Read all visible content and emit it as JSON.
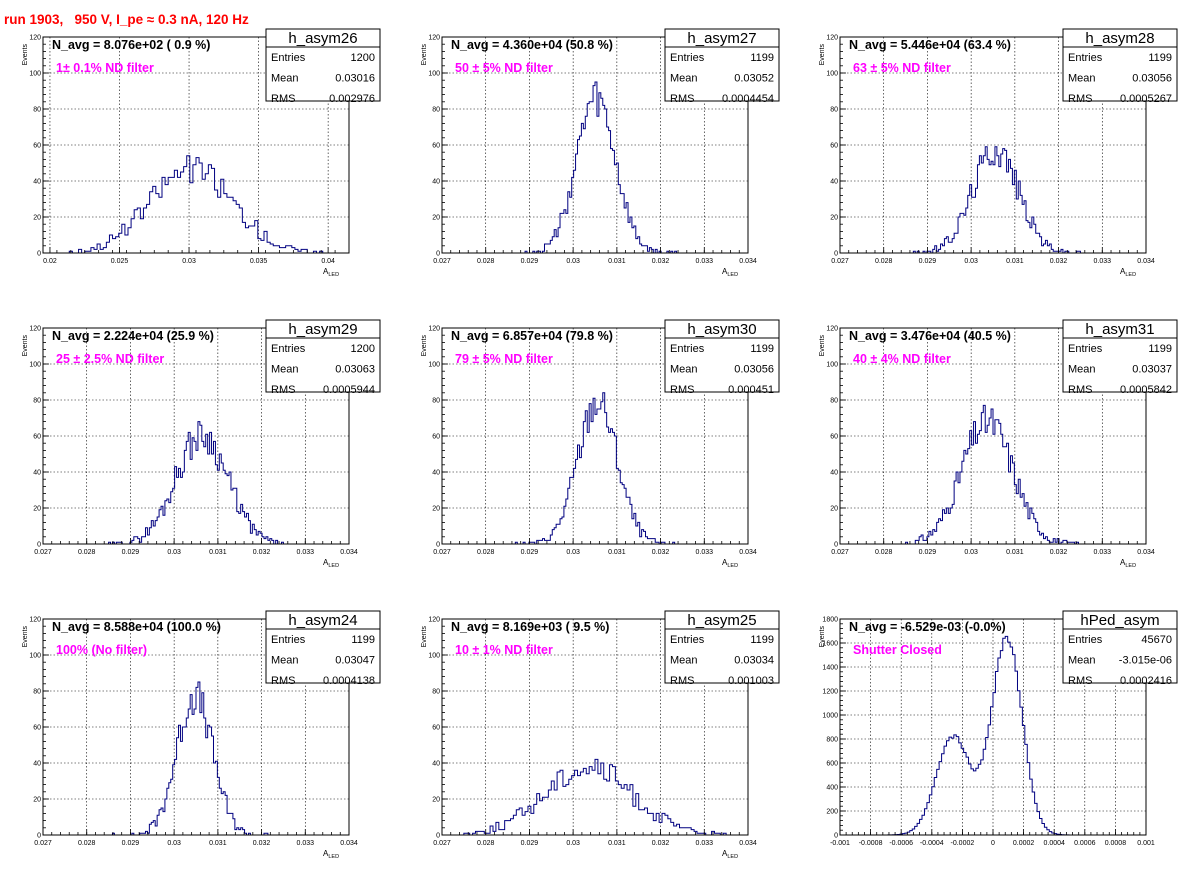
{
  "page": {
    "title": "run 1903,   950 V, I_pe ≈ 0.3 nA, 120 Hz",
    "title_color": "#ff0000",
    "line_color": "#000080",
    "annotation_color": "#ff00ff"
  },
  "chart_data": [
    {
      "type": "histogram",
      "hist_name": "h_asym26",
      "avg_text": "N_avg = 8.076e+02 ( 0.9 %)",
      "filter_text": "1± 0.1% ND filter",
      "stats": [
        {
          "label": "Entries",
          "value": "1200"
        },
        {
          "label": "Mean",
          "value": "0.03016"
        },
        {
          "label": "RMS",
          "value": "0.002976"
        }
      ],
      "xlim": [
        0.0195,
        0.0415
      ],
      "ylim": [
        0,
        120
      ],
      "x_ticks": [
        0.02,
        0.025,
        0.03,
        0.035,
        0.04
      ],
      "x_tick_labels": [
        "0.02",
        "0.025",
        "0.03",
        "0.035",
        "0.04"
      ],
      "y_ticks": [
        0,
        20,
        40,
        60,
        80,
        100,
        120
      ],
      "ylabel": "Events",
      "xlabel": "A",
      "xlabel_sub": "LED",
      "profile": "gauss",
      "mean": 0.03016,
      "sigma": 0.002976,
      "peak": 51,
      "bins": 90,
      "range": [
        0.0205,
        0.0405
      ],
      "seed": 26
    },
    {
      "type": "histogram",
      "hist_name": "h_asym27",
      "avg_text": "N_avg = 4.360e+04 (50.8 %)",
      "filter_text": "50 ± 5% ND filter",
      "stats": [
        {
          "label": "Entries",
          "value": "1199"
        },
        {
          "label": "Mean",
          "value": "0.03052"
        },
        {
          "label": "RMS",
          "value": "0.0004454"
        }
      ],
      "xlim": [
        0.027,
        0.034
      ],
      "ylim": [
        0,
        120
      ],
      "x_ticks": [
        0.027,
        0.028,
        0.029,
        0.03,
        0.031,
        0.032,
        0.033,
        0.034
      ],
      "x_tick_labels": [
        "0.027",
        "0.028",
        "0.029",
        "0.03",
        "0.031",
        "0.032",
        "0.033",
        "0.034"
      ],
      "y_ticks": [
        0,
        20,
        40,
        60,
        80,
        100,
        120
      ],
      "ylabel": "Events",
      "xlabel": "A",
      "xlabel_sub": "LED",
      "profile": "gauss",
      "mean": 0.03052,
      "sigma": 0.0004454,
      "peak": 92,
      "bins": 90,
      "range": [
        0.0285,
        0.0325
      ],
      "seed": 27
    },
    {
      "type": "histogram",
      "hist_name": "h_asym28",
      "avg_text": "N_avg = 5.446e+04 (63.4 %)",
      "filter_text": "63 ± 5% ND filter",
      "stats": [
        {
          "label": "Entries",
          "value": "1199"
        },
        {
          "label": "Mean",
          "value": "0.03056"
        },
        {
          "label": "RMS",
          "value": "0.0005267"
        }
      ],
      "xlim": [
        0.027,
        0.034
      ],
      "ylim": [
        0,
        120
      ],
      "x_ticks": [
        0.027,
        0.028,
        0.029,
        0.03,
        0.031,
        0.032,
        0.033,
        0.034
      ],
      "x_tick_labels": [
        "0.027",
        "0.028",
        "0.029",
        "0.03",
        "0.031",
        "0.032",
        "0.033",
        "0.034"
      ],
      "y_ticks": [
        0,
        20,
        40,
        60,
        80,
        100,
        120
      ],
      "ylabel": "Events",
      "xlabel": "A",
      "xlabel_sub": "LED",
      "profile": "gauss",
      "mean": 0.03056,
      "sigma": 0.0005267,
      "peak": 63,
      "bins": 90,
      "range": [
        0.0285,
        0.0325
      ],
      "seed": 28
    },
    {
      "type": "histogram",
      "hist_name": "h_asym29",
      "avg_text": "N_avg = 2.224e+04 (25.9 %)",
      "filter_text": "25 ± 2.5% ND filter",
      "stats": [
        {
          "label": "Entries",
          "value": "1200"
        },
        {
          "label": "Mean",
          "value": "0.03063"
        },
        {
          "label": "RMS",
          "value": "0.0005944"
        }
      ],
      "xlim": [
        0.027,
        0.034
      ],
      "ylim": [
        0,
        120
      ],
      "x_ticks": [
        0.027,
        0.028,
        0.029,
        0.03,
        0.031,
        0.032,
        0.033,
        0.034
      ],
      "x_tick_labels": [
        "0.027",
        "0.028",
        "0.029",
        "0.03",
        "0.031",
        "0.032",
        "0.033",
        "0.034"
      ],
      "y_ticks": [
        0,
        20,
        40,
        60,
        80,
        100,
        120
      ],
      "ylabel": "Events",
      "xlabel": "A",
      "xlabel_sub": "LED",
      "profile": "gauss",
      "mean": 0.03063,
      "sigma": 0.0005944,
      "peak": 66,
      "bins": 90,
      "range": [
        0.0285,
        0.0325
      ],
      "seed": 29
    },
    {
      "type": "histogram",
      "hist_name": "h_asym30",
      "avg_text": "N_avg = 6.857e+04 (79.8 %)",
      "filter_text": "79 ± 5% ND filter",
      "stats": [
        {
          "label": "Entries",
          "value": "1199"
        },
        {
          "label": "Mean",
          "value": "0.03056"
        },
        {
          "label": "RMS",
          "value": "0.000451"
        }
      ],
      "xlim": [
        0.027,
        0.034
      ],
      "ylim": [
        0,
        120
      ],
      "x_ticks": [
        0.027,
        0.028,
        0.029,
        0.03,
        0.031,
        0.032,
        0.033,
        0.034
      ],
      "x_tick_labels": [
        "0.027",
        "0.028",
        "0.029",
        "0.03",
        "0.031",
        "0.032",
        "0.033",
        "0.034"
      ],
      "y_ticks": [
        0,
        20,
        40,
        60,
        80,
        100,
        120
      ],
      "ylabel": "Events",
      "xlabel": "A",
      "xlabel_sub": "LED",
      "profile": "gauss",
      "mean": 0.03056,
      "sigma": 0.000451,
      "peak": 86,
      "bins": 90,
      "range": [
        0.0285,
        0.0325
      ],
      "seed": 30
    },
    {
      "type": "histogram",
      "hist_name": "h_asym31",
      "avg_text": "N_avg = 3.476e+04 (40.5 %)",
      "filter_text": "40 ± 4% ND filter",
      "stats": [
        {
          "label": "Entries",
          "value": "1199"
        },
        {
          "label": "Mean",
          "value": "0.03037"
        },
        {
          "label": "RMS",
          "value": "0.0005842"
        }
      ],
      "xlim": [
        0.027,
        0.034
      ],
      "ylim": [
        0,
        120
      ],
      "x_ticks": [
        0.027,
        0.028,
        0.029,
        0.03,
        0.031,
        0.032,
        0.033,
        0.034
      ],
      "x_tick_labels": [
        "0.027",
        "0.028",
        "0.029",
        "0.03",
        "0.031",
        "0.032",
        "0.033",
        "0.034"
      ],
      "y_ticks": [
        0,
        20,
        40,
        60,
        80,
        100,
        120
      ],
      "ylabel": "Events",
      "xlabel": "A",
      "xlabel_sub": "LED",
      "profile": "gauss",
      "mean": 0.03037,
      "sigma": 0.0005842,
      "peak": 74,
      "bins": 90,
      "range": [
        0.0285,
        0.0325
      ],
      "seed": 31
    },
    {
      "type": "histogram",
      "hist_name": "h_asym24",
      "avg_text": "N_avg = 8.588e+04 (100.0 %)",
      "filter_text": "100% (No filter)",
      "stats": [
        {
          "label": "Entries",
          "value": "1199"
        },
        {
          "label": "Mean",
          "value": "0.03047"
        },
        {
          "label": "RMS",
          "value": "0.0004138"
        }
      ],
      "xlim": [
        0.027,
        0.034
      ],
      "ylim": [
        0,
        120
      ],
      "x_ticks": [
        0.027,
        0.028,
        0.029,
        0.03,
        0.031,
        0.032,
        0.033,
        0.034
      ],
      "x_tick_labels": [
        "0.027",
        "0.028",
        "0.029",
        "0.03",
        "0.031",
        "0.032",
        "0.033",
        "0.034"
      ],
      "y_ticks": [
        0,
        20,
        40,
        60,
        80,
        100,
        120
      ],
      "ylabel": "Events",
      "xlabel": "A",
      "xlabel_sub": "LED",
      "profile": "gauss",
      "mean": 0.03047,
      "sigma": 0.0004138,
      "peak": 84,
      "bins": 90,
      "range": [
        0.0285,
        0.0325
      ],
      "seed": 24
    },
    {
      "type": "histogram",
      "hist_name": "h_asym25",
      "avg_text": "N_avg = 8.169e+03 ( 9.5 %)",
      "filter_text": "10 ± 1% ND filter",
      "stats": [
        {
          "label": "Entries",
          "value": "1199"
        },
        {
          "label": "Mean",
          "value": "0.03034"
        },
        {
          "label": "RMS",
          "value": "0.001003"
        }
      ],
      "xlim": [
        0.027,
        0.034
      ],
      "ylim": [
        0,
        120
      ],
      "x_ticks": [
        0.027,
        0.028,
        0.029,
        0.03,
        0.031,
        0.032,
        0.033,
        0.034
      ],
      "x_tick_labels": [
        "0.027",
        "0.028",
        "0.029",
        "0.03",
        "0.031",
        "0.032",
        "0.033",
        "0.034"
      ],
      "y_ticks": [
        0,
        20,
        40,
        60,
        80,
        100,
        120
      ],
      "ylabel": "Events",
      "xlabel": "A",
      "xlabel_sub": "LED",
      "profile": "gauss",
      "mean": 0.03034,
      "sigma": 0.001003,
      "peak": 41,
      "bins": 90,
      "range": [
        0.0275,
        0.0335
      ],
      "seed": 25
    },
    {
      "type": "histogram",
      "hist_name": "hPed_asym",
      "avg_text": "N_avg = -6.529e-03 (-0.0%)",
      "filter_text": "Shutter Closed",
      "stats": [
        {
          "label": "Entries",
          "value": "45670"
        },
        {
          "label": "Mean",
          "value": "-3.015e-06"
        },
        {
          "label": "RMS",
          "value": "0.0002416"
        }
      ],
      "xlim": [
        -0.001,
        0.001
      ],
      "ylim": [
        0,
        1800
      ],
      "x_ticks": [
        -0.001,
        -0.0008,
        -0.0006,
        -0.0004,
        -0.0002,
        0,
        0.0002,
        0.0004,
        0.0006,
        0.0008,
        0.001
      ],
      "x_tick_labels": [
        "-0.001",
        "-0.0008",
        "-0.0006",
        "-0.0004",
        "-0.0002",
        "0",
        "0.0002",
        "0.0004",
        "0.0006",
        "0.0008",
        "0.001"
      ],
      "y_ticks": [
        0,
        200,
        400,
        600,
        800,
        1000,
        1200,
        1400,
        1600,
        1800
      ],
      "ylabel": "Events",
      "profile": "double",
      "components": [
        {
          "mean": -0.00026,
          "sigma": 0.00011,
          "peak": 820
        },
        {
          "mean": 9e-05,
          "sigma": 0.0001,
          "peak": 1640
        }
      ],
      "bins": 100,
      "range": [
        -0.0008,
        0.0008
      ],
      "seed": 99
    }
  ]
}
